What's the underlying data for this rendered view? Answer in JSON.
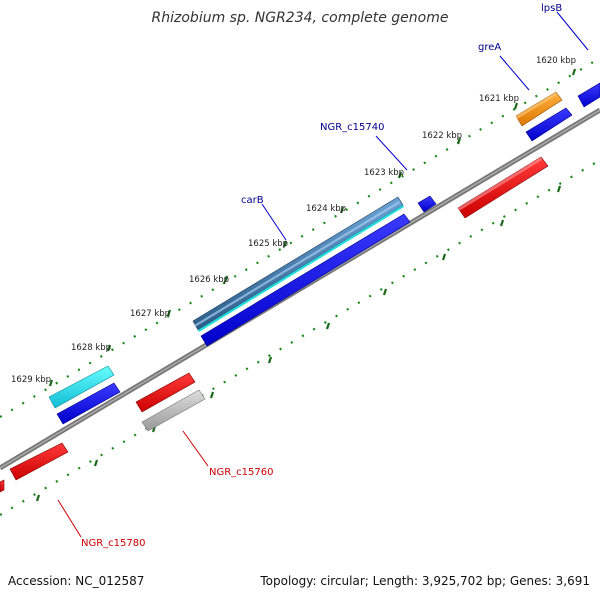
{
  "title": "Rhizobium sp. NGR234, complete genome",
  "footer": {
    "accession": "Accession: NC_012587",
    "summary": "Topology: circular; Length: 3,925,702 bp; Genes: 3,691"
  },
  "ticks": [
    {
      "label": "1620 kbp"
    },
    {
      "label": "1621 kbp"
    },
    {
      "label": "1622 kbp"
    },
    {
      "label": "1623 kbp"
    },
    {
      "label": "1624 kbp"
    },
    {
      "label": "1625 kbp"
    },
    {
      "label": "1626 kbp"
    },
    {
      "label": "1627 kbp"
    },
    {
      "label": "1628 kbp"
    },
    {
      "label": "1629 kbp"
    }
  ],
  "gene_labels": [
    {
      "name": "lpsB",
      "strand": "forward"
    },
    {
      "name": "greA",
      "strand": "forward"
    },
    {
      "name": "NGR_c15740",
      "strand": "forward"
    },
    {
      "name": "carB",
      "strand": "forward"
    },
    {
      "name": "NGR_c15760",
      "strand": "reverse"
    },
    {
      "name": "NGR_c15780",
      "strand": "reverse"
    }
  ],
  "colors": {
    "forward_label": "#00008b",
    "reverse_label": "#cc0000",
    "cds": "#0000ee",
    "gene_reverse": "#ee0000",
    "backbone": "#888888",
    "tick": "#1b8a1b",
    "orange": "#f08a00",
    "cyan": "#22dddd",
    "steel": "#4682b4",
    "gray": "#bbbbbb"
  }
}
